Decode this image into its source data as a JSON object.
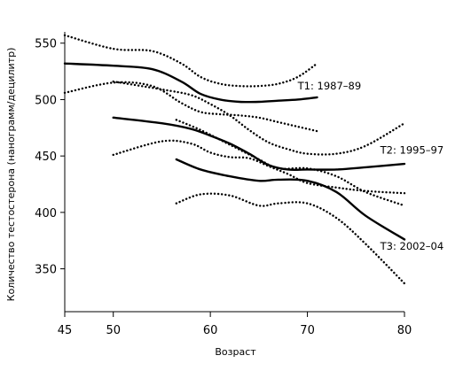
{
  "chart_data": {
    "type": "line",
    "xlabel": "Возраст",
    "ylabel": "Количество тестостерона (нанограмм/децилитр)",
    "xlim": [
      45,
      80
    ],
    "ylim": [
      312,
      560
    ],
    "x_ticks": [
      45,
      50,
      60,
      70,
      80
    ],
    "y_ticks": [
      350,
      400,
      450,
      500,
      550
    ],
    "grid": false,
    "series": [
      {
        "name": "T1: 1987–89",
        "label_x": 69,
        "label_y": 509,
        "x": [
          45,
          50,
          54,
          57,
          59,
          61,
          63,
          65,
          67,
          69,
          71
        ],
        "y": [
          532,
          530,
          527,
          516,
          505,
          500,
          498,
          498,
          499,
          500,
          502
        ],
        "upper": [
          557,
          545,
          543,
          532,
          520,
          514,
          512,
          512,
          514,
          520,
          532
        ],
        "lower": [
          506,
          515,
          512,
          497,
          489,
          487,
          486,
          484,
          480,
          476,
          472
        ]
      },
      {
        "name": "T2: 1995–97",
        "label_x": 77.5,
        "label_y": 452,
        "x": [
          50,
          55,
          58,
          60,
          62,
          64,
          66,
          68,
          70,
          73,
          76,
          80
        ],
        "y": [
          484,
          479,
          474,
          468,
          461,
          452,
          442,
          438,
          438,
          438,
          440,
          443
        ],
        "upper": [
          516,
          509,
          504,
          496,
          486,
          473,
          462,
          456,
          452,
          452,
          459,
          479
        ],
        "lower": [
          451,
          463,
          461,
          453,
          449,
          448,
          441,
          434,
          426,
          422,
          419,
          417
        ]
      },
      {
        "name": "T3: 2002–04",
        "label_x": 77.5,
        "label_y": 367,
        "x": [
          56.5,
          59,
          62,
          65,
          67,
          70,
          73,
          76,
          80
        ],
        "y": [
          447,
          438,
          432,
          428,
          429,
          428,
          418,
          397,
          376
        ],
        "upper": [
          482,
          473,
          460,
          447,
          439,
          439,
          432,
          418,
          406
        ],
        "lower": [
          408,
          416,
          415,
          406,
          408,
          408,
          395,
          372,
          337
        ]
      }
    ]
  }
}
